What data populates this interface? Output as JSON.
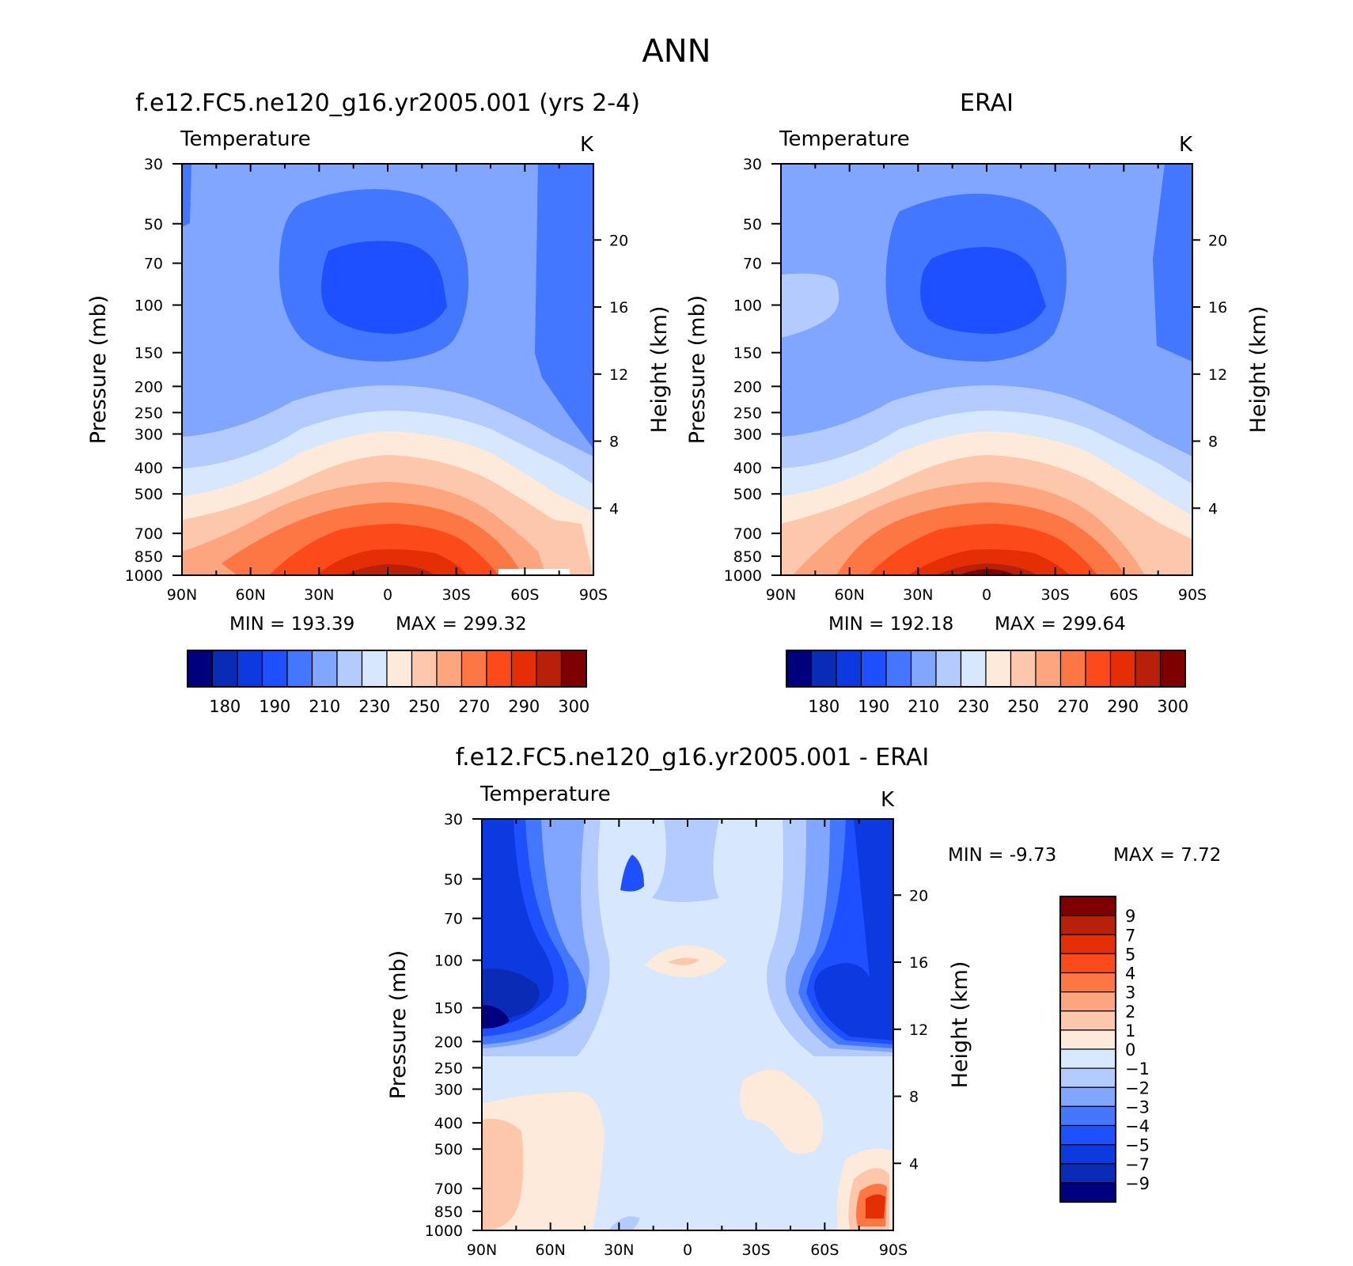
{
  "figure": {
    "title": "ANN"
  },
  "chart_data": [
    {
      "type": "contour",
      "title": "f.e12.FC5.ne120_g16.yr2005.001 (yrs 2-4)",
      "variable": "Temperature",
      "units": "K",
      "ylabel": "Pressure (mb)",
      "ylabel_right": "Height (km)",
      "x_ticks": [
        "90N",
        "60N",
        "30N",
        "0",
        "30S",
        "60S",
        "90S"
      ],
      "y_ticks": [
        "30",
        "50",
        "70",
        "100",
        "150",
        "200",
        "250",
        "300",
        "400",
        "500",
        "700",
        "850",
        "1000"
      ],
      "y_ticks_right": [
        "20",
        "16",
        "12",
        "8",
        "4"
      ],
      "ylim": [
        1000,
        30
      ],
      "y_scale": "log",
      "min_label": "MIN =  193.39",
      "max_label": "MAX =  299.32",
      "colorbar": {
        "orientation": "horizontal",
        "labels": [
          "180",
          "190",
          "210",
          "230",
          "250",
          "270",
          "290",
          "300"
        ],
        "colors": [
          "#00007f",
          "#0a2bb5",
          "#0c3ae0",
          "#1e50ff",
          "#4477ff",
          "#80a6ff",
          "#b3cbff",
          "#d6e7fe",
          "#feeadb",
          "#fdc7ac",
          "#fca57f",
          "#fc7744",
          "#fc4a1b",
          "#e52e05",
          "#b8200a",
          "#7f0000"
        ]
      },
      "contour_colors": {
        "polar_strat": "#4477ff",
        "tropopause_cold": "#4477ff",
        "tropopause_core": "#1e50ff",
        "background": "#80a6ff",
        "levels": [
          "#b3cbff",
          "#d6e7fe",
          "#feeadb",
          "#fdc7ac",
          "#fca57f",
          "#fc7744",
          "#fc4a1b",
          "#e52e05",
          "#b8200a"
        ]
      }
    },
    {
      "type": "contour",
      "title": "ERAI",
      "variable": "Temperature",
      "units": "K",
      "ylabel": "Pressure (mb)",
      "ylabel_right": "Height (km)",
      "x_ticks": [
        "90N",
        "60N",
        "30N",
        "0",
        "30S",
        "60S",
        "90S"
      ],
      "y_ticks": [
        "30",
        "50",
        "70",
        "100",
        "150",
        "200",
        "250",
        "300",
        "400",
        "500",
        "700",
        "850",
        "1000"
      ],
      "y_ticks_right": [
        "20",
        "16",
        "12",
        "8",
        "4"
      ],
      "ylim": [
        1000,
        30
      ],
      "y_scale": "log",
      "min_label": "MIN =  192.18",
      "max_label": "MAX =  299.64",
      "colorbar": {
        "orientation": "horizontal",
        "labels": [
          "180",
          "190",
          "210",
          "230",
          "250",
          "270",
          "290",
          "300"
        ],
        "colors": [
          "#00007f",
          "#0a2bb5",
          "#0c3ae0",
          "#1e50ff",
          "#4477ff",
          "#80a6ff",
          "#b3cbff",
          "#d6e7fe",
          "#feeadb",
          "#fdc7ac",
          "#fca57f",
          "#fc7744",
          "#fc4a1b",
          "#e52e05",
          "#b8200a",
          "#7f0000"
        ]
      }
    },
    {
      "type": "contour",
      "title": "f.e12.FC5.ne120_g16.yr2005.001 - ERAI",
      "variable": "Temperature",
      "units": "K",
      "ylabel": "Pressure (mb)",
      "ylabel_right": "Height (km)",
      "x_ticks": [
        "90N",
        "60N",
        "30N",
        "0",
        "30S",
        "60S",
        "90S"
      ],
      "y_ticks": [
        "30",
        "50",
        "70",
        "100",
        "150",
        "200",
        "250",
        "300",
        "400",
        "500",
        "700",
        "850",
        "1000"
      ],
      "y_ticks_right": [
        "20",
        "16",
        "12",
        "8",
        "4"
      ],
      "ylim": [
        1000,
        30
      ],
      "y_scale": "log",
      "min_label": "MIN =   -9.73",
      "max_label": "MAX =    7.72",
      "colorbar": {
        "orientation": "vertical",
        "labels": [
          "9",
          "7",
          "5",
          "4",
          "3",
          "2",
          "1",
          "0",
          "-1",
          "-2",
          "-3",
          "-4",
          "-5",
          "-7",
          "-9"
        ],
        "colors": [
          "#7f0000",
          "#b8200a",
          "#e52e05",
          "#fc4a1b",
          "#fc7744",
          "#fca57f",
          "#fdc7ac",
          "#feeadb",
          "#d6e7fe",
          "#b3cbff",
          "#80a6ff",
          "#4477ff",
          "#1e50ff",
          "#0c3ae0",
          "#0a2bb5",
          "#00007f"
        ]
      }
    }
  ]
}
